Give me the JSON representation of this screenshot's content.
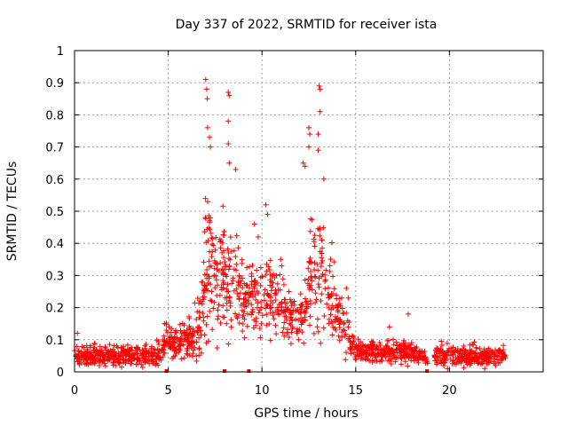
{
  "chart_data": {
    "type": "scatter",
    "title": "Day 337 of 2022, SRMTID for receiver ista",
    "xlabel": "GPS time / hours",
    "ylabel": "SRMTID / TECUs",
    "xlim": [
      0,
      25
    ],
    "ylim": [
      0,
      1
    ],
    "xticks": [
      0,
      5,
      10,
      15,
      20
    ],
    "xtick_labels": [
      "0",
      "5",
      "10",
      "15",
      "20"
    ],
    "yticks": [
      0,
      0.1,
      0.2,
      0.3,
      0.4,
      0.5,
      0.6,
      0.7,
      0.8,
      0.9,
      1
    ],
    "ytick_labels": [
      "0",
      "0.1",
      "0.2",
      "0.3",
      "0.4",
      "0.5",
      "0.6",
      "0.7",
      "0.8",
      "0.9",
      "1"
    ],
    "grid": true,
    "marker": "+",
    "color": "#ff0000",
    "series": [
      {
        "name": "SRMTID",
        "profile_hours": [
          0,
          1,
          2,
          3,
          4,
          4.6,
          4.9,
          5.5,
          6.3,
          6.8,
          7.0,
          7.3,
          7.7,
          8.1,
          8.5,
          9.0,
          9.6,
          10.0,
          10.4,
          10.9,
          11.4,
          11.9,
          12.3,
          12.7,
          13.1,
          13.5,
          14.0,
          14.5,
          15.0,
          16.0,
          17.0,
          18.0,
          18.8,
          19.5,
          21.0,
          23.0
        ],
        "profile_median": [
          0.055,
          0.05,
          0.05,
          0.05,
          0.05,
          0.06,
          0.1,
          0.09,
          0.11,
          0.18,
          0.34,
          0.32,
          0.3,
          0.28,
          0.27,
          0.24,
          0.22,
          0.24,
          0.25,
          0.2,
          0.16,
          0.15,
          0.2,
          0.28,
          0.3,
          0.24,
          0.2,
          0.13,
          0.07,
          0.06,
          0.06,
          0.06,
          0.04,
          0.05,
          0.05,
          0.05
        ],
        "profile_spread": [
          0.02,
          0.02,
          0.02,
          0.02,
          0.02,
          0.02,
          0.03,
          0.03,
          0.04,
          0.07,
          0.14,
          0.12,
          0.12,
          0.1,
          0.09,
          0.08,
          0.06,
          0.09,
          0.08,
          0.06,
          0.05,
          0.05,
          0.07,
          0.12,
          0.12,
          0.1,
          0.06,
          0.05,
          0.02,
          0.02,
          0.02,
          0.02,
          0.01,
          0.02,
          0.02,
          0.02
        ],
        "outliers": [
          {
            "x": 7.0,
            "y": 0.91
          },
          {
            "x": 7.05,
            "y": 0.88
          },
          {
            "x": 7.08,
            "y": 0.85
          },
          {
            "x": 7.1,
            "y": 0.76
          },
          {
            "x": 7.2,
            "y": 0.73
          },
          {
            "x": 7.25,
            "y": 0.7
          },
          {
            "x": 8.2,
            "y": 0.87
          },
          {
            "x": 8.25,
            "y": 0.86
          },
          {
            "x": 8.2,
            "y": 0.78
          },
          {
            "x": 8.2,
            "y": 0.71
          },
          {
            "x": 8.25,
            "y": 0.65
          },
          {
            "x": 8.6,
            "y": 0.63
          },
          {
            "x": 12.2,
            "y": 0.65
          },
          {
            "x": 12.3,
            "y": 0.64
          },
          {
            "x": 12.5,
            "y": 0.76
          },
          {
            "x": 12.55,
            "y": 0.74
          },
          {
            "x": 12.5,
            "y": 0.7
          },
          {
            "x": 13.05,
            "y": 0.89
          },
          {
            "x": 13.1,
            "y": 0.88
          },
          {
            "x": 13.1,
            "y": 0.81
          },
          {
            "x": 13.0,
            "y": 0.74
          },
          {
            "x": 13.0,
            "y": 0.69
          },
          {
            "x": 13.3,
            "y": 0.6
          },
          {
            "x": 10.2,
            "y": 0.52
          },
          {
            "x": 10.3,
            "y": 0.49
          },
          {
            "x": 9.6,
            "y": 0.46
          },
          {
            "x": 9.8,
            "y": 0.42
          },
          {
            "x": 11.0,
            "y": 0.35
          },
          {
            "x": 11.05,
            "y": 0.33
          },
          {
            "x": 14.5,
            "y": 0.26
          },
          {
            "x": 14.6,
            "y": 0.23
          },
          {
            "x": 17.8,
            "y": 0.18
          },
          {
            "x": 16.8,
            "y": 0.14
          },
          {
            "x": 4.8,
            "y": 0.15
          },
          {
            "x": 0.15,
            "y": 0.12
          }
        ],
        "bottom_markers": [
          4.9,
          8.0,
          9.3,
          18.8
        ]
      }
    ]
  }
}
